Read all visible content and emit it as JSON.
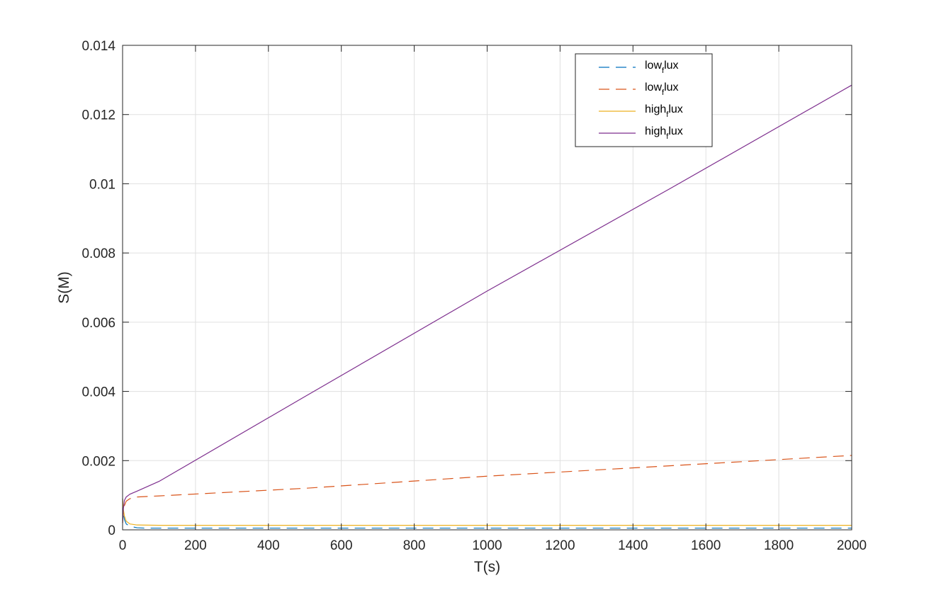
{
  "chart_data": {
    "type": "line",
    "xlabel": "T(s)",
    "ylabel": "S(M)",
    "xlim": [
      0,
      2000
    ],
    "ylim": [
      0,
      0.014
    ],
    "xticks": [
      0,
      200,
      400,
      600,
      800,
      1000,
      1200,
      1400,
      1600,
      1800,
      2000
    ],
    "xtick_labels": [
      "0",
      "200",
      "400",
      "600",
      "800",
      "1000",
      "1200",
      "1400",
      "1600",
      "1800",
      "2000"
    ],
    "yticks": [
      0,
      0.002,
      0.004,
      0.006,
      0.008,
      0.01,
      0.012,
      0.014
    ],
    "ytick_labels": [
      "0",
      "0.002",
      "0.004",
      "0.006",
      "0.008",
      "0.01",
      "0.012",
      "0.014"
    ],
    "grid": true,
    "legend_position": "top-right",
    "series": [
      {
        "legend_base": "low",
        "legend_sub": "f",
        "legend_rest": "lux",
        "color": "#0072BD",
        "dash": "dashed",
        "x": [
          0,
          2,
          5,
          10,
          20,
          40,
          60,
          100,
          200,
          500,
          1000,
          1500,
          2000
        ],
        "y": [
          0.0009,
          0.0005,
          0.0003,
          0.00017,
          0.0001,
          6e-05,
          5e-05,
          5e-05,
          5e-05,
          5e-05,
          5e-05,
          5e-05,
          5e-05
        ]
      },
      {
        "legend_base": "low",
        "legend_sub": "f",
        "legend_rest": "lux",
        "color": "#D95319",
        "dash": "dashed",
        "x": [
          0,
          2,
          5,
          10,
          20,
          40,
          100,
          500,
          1000,
          1500,
          2000
        ],
        "y": [
          0.0002,
          0.0005,
          0.0007,
          0.00083,
          0.0009,
          0.00095,
          0.00098,
          0.0012,
          0.00155,
          0.00185,
          0.00215
        ]
      },
      {
        "legend_base": "high",
        "legend_sub": "f",
        "legend_rest": "lux",
        "color": "#EDB120",
        "dash": "solid",
        "x": [
          0,
          2,
          5,
          10,
          20,
          40,
          100,
          500,
          1000,
          1500,
          2000
        ],
        "y": [
          0.0009,
          0.0006,
          0.0004,
          0.00025,
          0.00017,
          0.00014,
          0.00013,
          0.00013,
          0.00013,
          0.00013,
          0.00013
        ]
      },
      {
        "legend_base": "high",
        "legend_sub": "f",
        "legend_rest": "lux",
        "color": "#7E2F8E",
        "dash": "solid",
        "x": [
          0,
          2,
          5,
          10,
          20,
          40,
          100,
          500,
          1000,
          1500,
          2000
        ],
        "y": [
          0.0002,
          0.0006,
          0.00085,
          0.00095,
          0.00103,
          0.00112,
          0.0014,
          0.00385,
          0.0069,
          0.00985,
          0.01285
        ]
      }
    ]
  }
}
